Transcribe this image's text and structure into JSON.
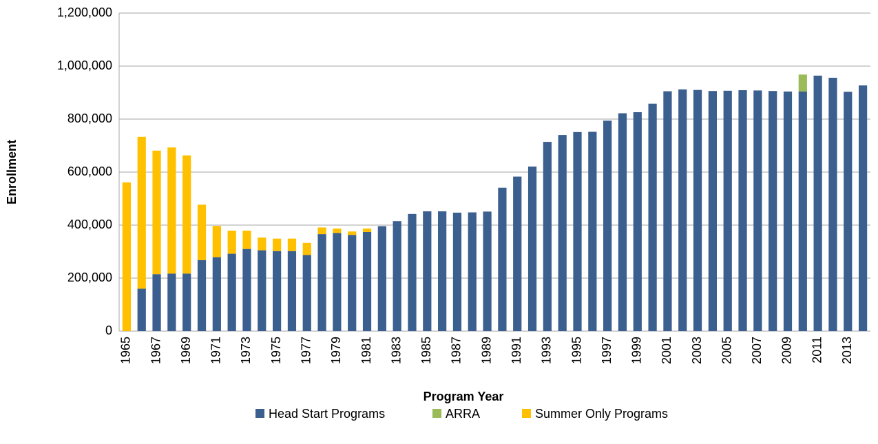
{
  "chart_data": {
    "type": "stacked_bar",
    "x_label": "Program Year",
    "y_label": "Enrollment",
    "categories": [
      "1965",
      null,
      "1967",
      null,
      "1969",
      null,
      "1971",
      null,
      "1973",
      null,
      "1975",
      null,
      "1977",
      null,
      "1979",
      null,
      "1981",
      null,
      "1983",
      null,
      "1985",
      null,
      "1987",
      null,
      "1989",
      null,
      "1991",
      null,
      "1993",
      null,
      "1995",
      null,
      "1997",
      null,
      "1999",
      null,
      "2001",
      null,
      "2003",
      null,
      "2005",
      null,
      "2007",
      null,
      "2009",
      null,
      "2011",
      null,
      "2013",
      null
    ],
    "series": [
      {
        "name": "Head Start Programs",
        "color": "#3b5f8f",
        "values": [
          0,
          160000,
          215000,
          217000,
          217000,
          268000,
          279000,
          292000,
          310000,
          305000,
          302000,
          302000,
          287000,
          366000,
          370000,
          363000,
          374000,
          396000,
          415000,
          442000,
          452000,
          452000,
          447000,
          448000,
          451000,
          541000,
          583000,
          621000,
          714000,
          740000,
          751000,
          752000,
          794000,
          822000,
          826000,
          858000,
          905000,
          912000,
          910000,
          906000,
          907000,
          909000,
          908000,
          906000,
          904000,
          904000,
          964000,
          956000,
          903000,
          927000
        ]
      },
      {
        "name": "ARRA",
        "color": "#9bbb59",
        "values": [
          0,
          0,
          0,
          0,
          0,
          0,
          0,
          0,
          0,
          0,
          0,
          0,
          0,
          0,
          0,
          0,
          0,
          0,
          0,
          0,
          0,
          0,
          0,
          0,
          0,
          0,
          0,
          0,
          0,
          0,
          0,
          0,
          0,
          0,
          0,
          0,
          0,
          0,
          0,
          0,
          0,
          0,
          0,
          0,
          0,
          64000,
          0,
          0,
          0,
          0
        ]
      },
      {
        "name": "Summer Only Programs",
        "color": "#ffc000",
        "values": [
          561000,
          573000,
          466000,
          476000,
          446000,
          209000,
          118000,
          87000,
          69000,
          48000,
          47000,
          47000,
          46000,
          25000,
          17000,
          13000,
          13000,
          0,
          0,
          0,
          0,
          0,
          0,
          0,
          0,
          0,
          0,
          0,
          0,
          0,
          0,
          0,
          0,
          0,
          0,
          0,
          0,
          0,
          0,
          0,
          0,
          0,
          0,
          0,
          0,
          0,
          0,
          0,
          0,
          0
        ]
      }
    ],
    "ylim": [
      0,
      1200000
    ],
    "yticks": [
      0,
      {
        "value": 200000,
        "label": "200,000"
      },
      {
        "value": 400000,
        "label": "400,000"
      },
      {
        "value": 600000,
        "label": "600,000"
      },
      {
        "value": 800000,
        "label": "800,000"
      },
      {
        "value": 1000000,
        "label": "1,000,000"
      },
      {
        "value": 1200000,
        "label": "1,200,000"
      }
    ],
    "grid": true,
    "legend": "bottom"
  }
}
